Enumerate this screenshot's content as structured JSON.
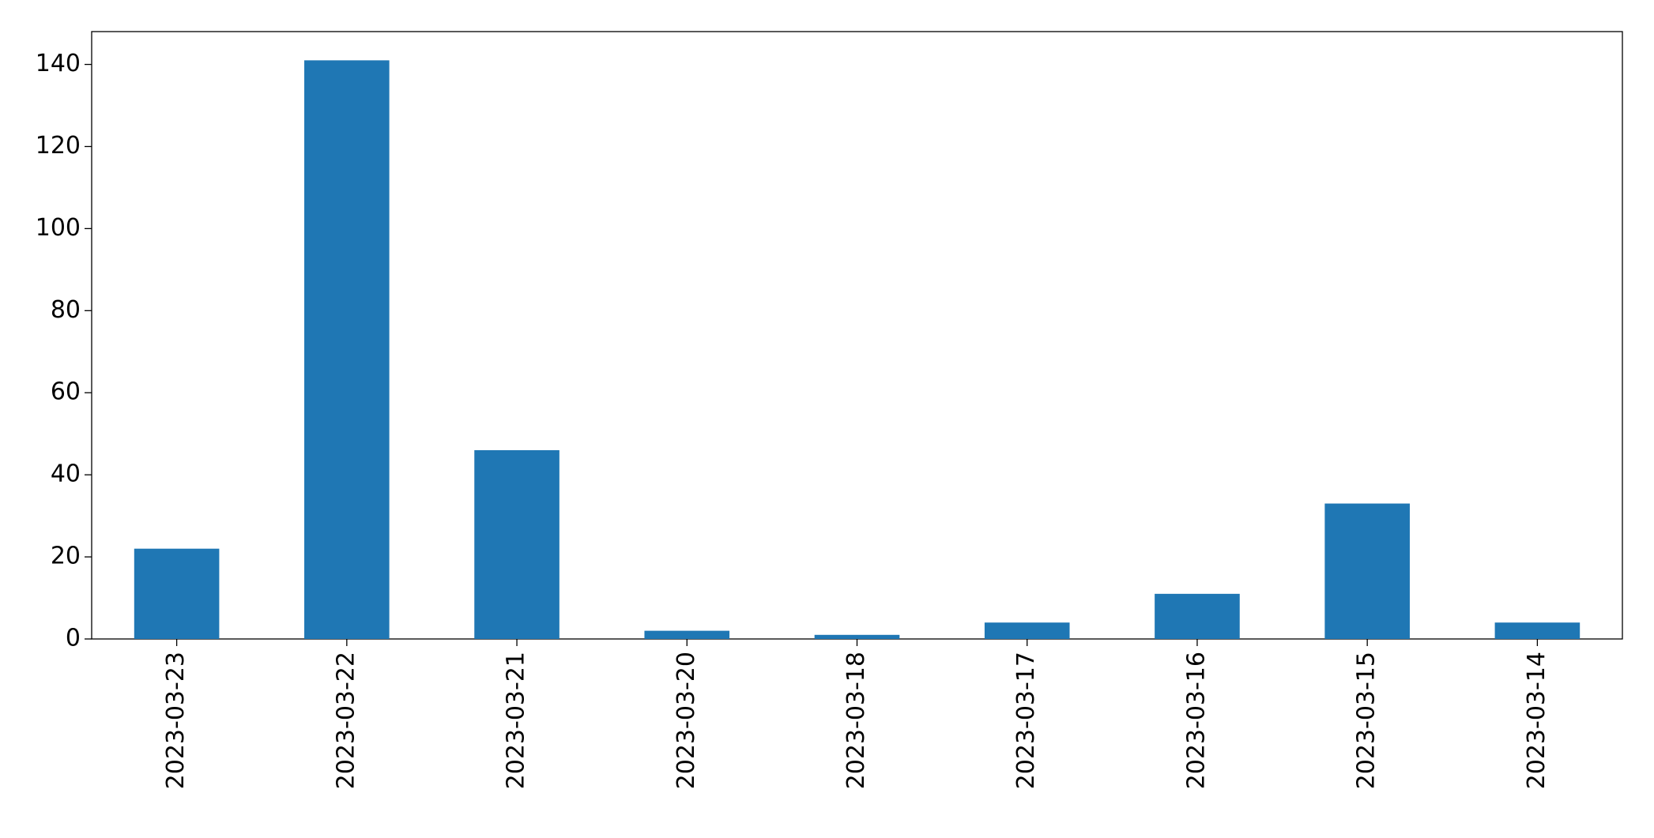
{
  "chart_data": {
    "type": "bar",
    "categories": [
      "2023-03-23",
      "2023-03-22",
      "2023-03-21",
      "2023-03-20",
      "2023-03-18",
      "2023-03-17",
      "2023-03-16",
      "2023-03-15",
      "2023-03-14"
    ],
    "values": [
      22,
      141,
      46,
      2,
      1,
      4,
      11,
      33,
      4
    ],
    "color": "#1f77b4",
    "ylim": [
      0,
      148
    ],
    "yticks": [
      0,
      20,
      40,
      60,
      80,
      100,
      120,
      140
    ],
    "grid": false
  }
}
